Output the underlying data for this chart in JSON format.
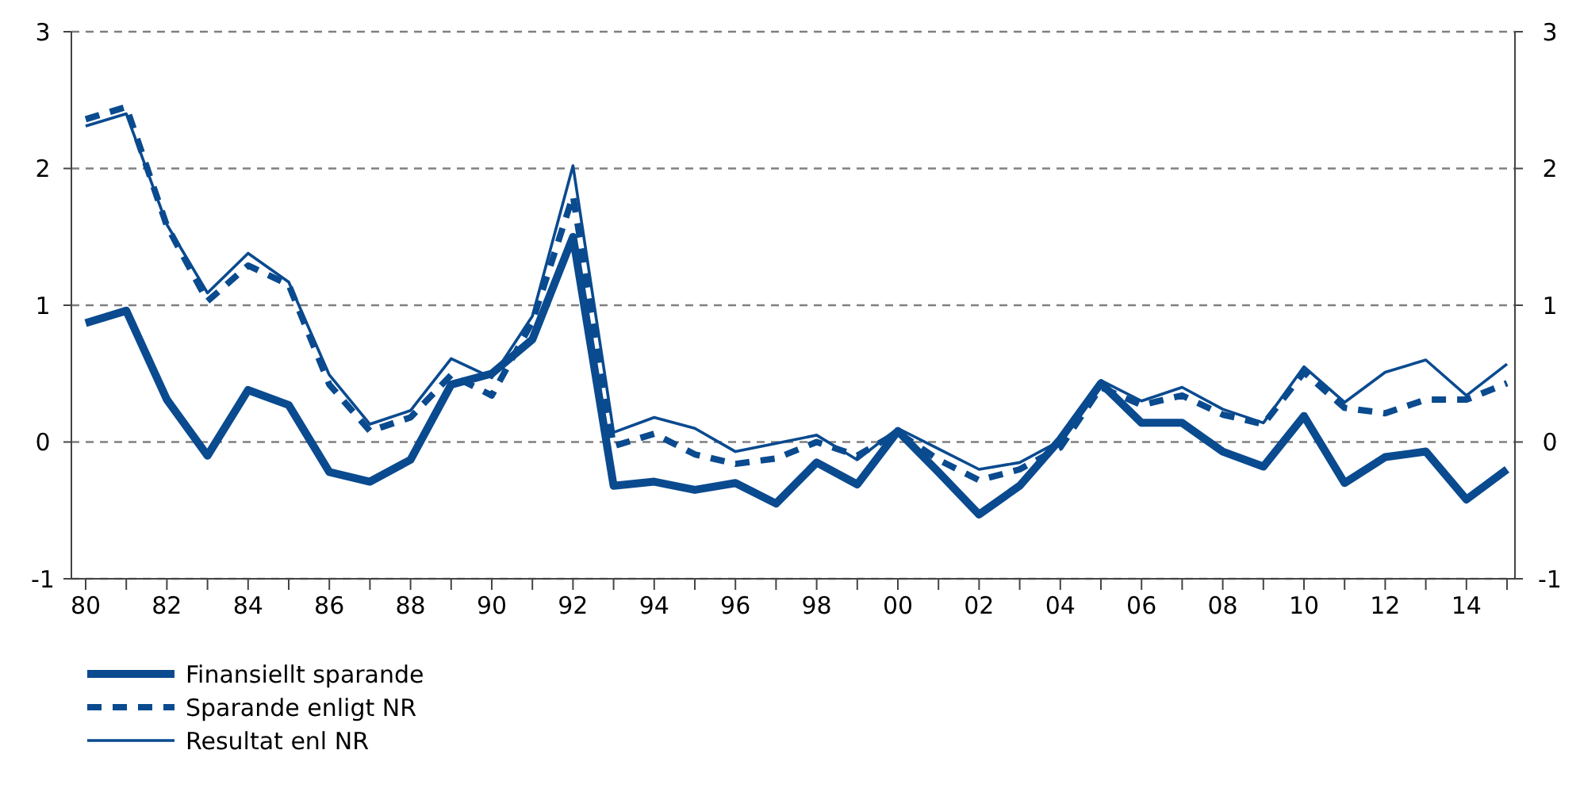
{
  "chart_data": {
    "type": "line",
    "categories": [
      "80",
      null,
      "82",
      null,
      "84",
      null,
      "86",
      null,
      "88",
      null,
      "90",
      null,
      "92",
      null,
      "94",
      null,
      "96",
      null,
      "98",
      null,
      "00",
      null,
      "02",
      null,
      "04",
      null,
      "06",
      null,
      "08",
      null,
      "10",
      null,
      "12",
      null,
      "14",
      null
    ],
    "series": [
      {
        "name": "Finansiellt sparande",
        "color": "#0a4a8f",
        "line_style": "solid",
        "values": [
          0.87,
          0.96,
          0.31,
          -0.1,
          0.38,
          0.27,
          -0.22,
          -0.29,
          -0.13,
          0.42,
          0.5,
          0.75,
          1.5,
          -0.32,
          -0.29,
          -0.35,
          -0.3,
          -0.45,
          -0.15,
          -0.31,
          0.08,
          -0.22,
          -0.53,
          -0.32,
          0.02,
          0.43,
          0.14,
          0.14,
          -0.07,
          -0.18,
          0.19,
          -0.3,
          -0.11,
          -0.07,
          -0.42,
          -0.2
        ]
      },
      {
        "name": "Sparande enligt NR",
        "color": "#0a4a8f",
        "line_style": "dashed",
        "values": [
          2.36,
          2.45,
          1.58,
          1.03,
          1.29,
          1.15,
          0.42,
          0.08,
          0.18,
          0.49,
          0.34,
          0.88,
          1.8,
          -0.03,
          0.06,
          -0.09,
          -0.16,
          -0.12,
          0.0,
          -0.1,
          0.07,
          -0.13,
          -0.28,
          -0.2,
          -0.04,
          0.4,
          0.27,
          0.34,
          0.2,
          0.13,
          0.51,
          0.25,
          0.21,
          0.31,
          0.31,
          0.43
        ]
      },
      {
        "name": "Resultat enl NR",
        "color": "#0a4a8f",
        "line_style": "solid",
        "values": [
          2.31,
          2.4,
          1.59,
          1.09,
          1.38,
          1.17,
          0.49,
          0.13,
          0.23,
          0.61,
          0.47,
          0.92,
          2.02,
          0.07,
          0.18,
          0.1,
          -0.07,
          -0.01,
          0.05,
          -0.13,
          0.1,
          -0.05,
          -0.2,
          -0.15,
          0.01,
          0.45,
          0.3,
          0.4,
          0.24,
          0.14,
          0.55,
          0.29,
          0.51,
          0.6,
          0.34,
          0.57
        ]
      }
    ],
    "ylim": [
      -1,
      3
    ],
    "yticks": [
      -1,
      0,
      1,
      2,
      3
    ],
    "y2lim": [
      -1,
      3
    ],
    "y2ticks": [
      -1,
      0,
      1,
      2,
      3
    ],
    "grid": "y",
    "legend": "bottom left"
  }
}
